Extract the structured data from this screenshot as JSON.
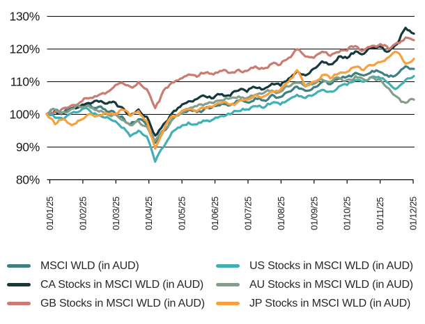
{
  "chart_data": {
    "type": "line",
    "title": "",
    "grid": "horizontal",
    "legend_position": "bottom",
    "y_axis": {
      "min": 80,
      "max": 130,
      "step": 10,
      "unit": "%"
    },
    "y_tick_labels": [
      "130%",
      "120%",
      "110%",
      "100%",
      "90%",
      "80%"
    ],
    "x_tick_labels": [
      "01/01/25",
      "01/02/25",
      "01/03/25",
      "01/04/25",
      "01/05/25",
      "01/06/25",
      "01/07/25",
      "01/08/25",
      "01/09/25",
      "01/10/25",
      "01/11/25",
      "01/12/25"
    ],
    "x_points_per_month": 4,
    "series": [
      {
        "name": "MSCI WLD (in AUD)",
        "color": "#3F7E81",
        "values": [
          100,
          101.3,
          100.2,
          101.8,
          102.4,
          103.1,
          101.9,
          101.4,
          100.8,
          99.3,
          96.8,
          98.4,
          96.5,
          91.2,
          94.8,
          98.2,
          100.1,
          101.2,
          100.6,
          101.9,
          102.4,
          103.2,
          102.7,
          104.1,
          103.6,
          104.8,
          104.2,
          105.9,
          105.2,
          106.8,
          108.4,
          107.1,
          108.2,
          109.8,
          109.1,
          110.8,
          111.4,
          112.6,
          111.8,
          113.2,
          112.8,
          111.4,
          112.2,
          114.6,
          113.8
        ]
      },
      {
        "name": "CA Stocks in MSCI WLD (in AUD)",
        "color": "#14383B",
        "values": [
          100,
          100.9,
          100.3,
          101.7,
          102.3,
          103.4,
          104.1,
          103.2,
          103.8,
          102.1,
          99.6,
          101.4,
          99.2,
          93.4,
          96.9,
          100.2,
          102.2,
          103.9,
          104.6,
          105.4,
          104.9,
          106.1,
          105.6,
          107.2,
          106.8,
          108.1,
          107.6,
          109.3,
          108.7,
          110.9,
          113.2,
          111.8,
          113.9,
          116.1,
          115.2,
          117.6,
          117.1,
          119.2,
          118.4,
          120.1,
          120.6,
          119.2,
          121.4,
          126.4,
          124.6
        ]
      },
      {
        "name": "GB Stocks in MSCI WLD (in AUD)",
        "color": "#CB7B70",
        "values": [
          100,
          100.6,
          101.8,
          102.7,
          103.6,
          104.8,
          105.4,
          106.2,
          108.1,
          109.6,
          108.4,
          109.8,
          107.6,
          101.8,
          107.2,
          109.6,
          110.8,
          112.1,
          111.4,
          112.6,
          112.1,
          113.2,
          112.6,
          113.6,
          113.2,
          114.6,
          113.9,
          115.4,
          115.1,
          117.2,
          119.8,
          117.6,
          117.2,
          119.1,
          117.8,
          118.9,
          119.4,
          120.8,
          119.6,
          120.9,
          121.4,
          119.8,
          121.8,
          123.4,
          122.6
        ]
      },
      {
        "name": "US Stocks in MSCI WLD (in AUD)",
        "color": "#41AFB4",
        "values": [
          100,
          98.9,
          98.4,
          100.3,
          100.9,
          101.4,
          99.8,
          98.9,
          97.9,
          95.8,
          93.2,
          94.9,
          93.1,
          85.4,
          89.9,
          94.4,
          95.9,
          97.4,
          96.8,
          97.9,
          98.4,
          99.4,
          99.9,
          100.9,
          101.4,
          102.4,
          101.9,
          103.4,
          102.9,
          104.4,
          105.9,
          104.9,
          105.9,
          107.4,
          106.9,
          108.4,
          108.9,
          110.4,
          109.9,
          111.4,
          110.9,
          109.4,
          107.9,
          110.4,
          111.6
        ]
      },
      {
        "name": "AU Stocks in MSCI WLD (in AUD)",
        "color": "#82A089",
        "values": [
          100,
          101.4,
          100.6,
          101.6,
          102.1,
          102.6,
          101.2,
          100.4,
          99.8,
          98.2,
          96.6,
          97.9,
          96.2,
          91.8,
          95.1,
          98.4,
          100.2,
          101.6,
          102.4,
          103.1,
          103.4,
          104.2,
          104.8,
          105.4,
          104.9,
          105.9,
          106.4,
          107.2,
          106.8,
          108.4,
          109.6,
          108.4,
          109.2,
          110.6,
          109.8,
          111.1,
          110.4,
          111.6,
          110.6,
          111.2,
          110.4,
          107.8,
          105.2,
          103.4,
          104.4
        ]
      },
      {
        "name": "JP Stocks in MSCI WLD (in AUD)",
        "color": "#F7A13E",
        "values": [
          100,
          96.9,
          98.4,
          96.6,
          98.1,
          99.9,
          99.4,
          100.4,
          99.9,
          101.4,
          99.4,
          100.9,
          97.9,
          89.4,
          94.9,
          99.4,
          100.4,
          101.4,
          100.9,
          101.9,
          102.4,
          103.4,
          102.9,
          103.9,
          104.4,
          105.9,
          105.4,
          106.9,
          107.4,
          109.9,
          113.4,
          108.4,
          109.9,
          111.9,
          110.9,
          112.4,
          112.9,
          114.4,
          113.4,
          114.9,
          115.9,
          117.4,
          118.9,
          115.4,
          116.9
        ]
      }
    ]
  },
  "legend": {
    "columns": [
      [
        0,
        1,
        2
      ],
      [
        3,
        4,
        5
      ]
    ]
  },
  "style": {
    "grid_color": "#000000",
    "axis_text_color": "#1a1a1a"
  }
}
